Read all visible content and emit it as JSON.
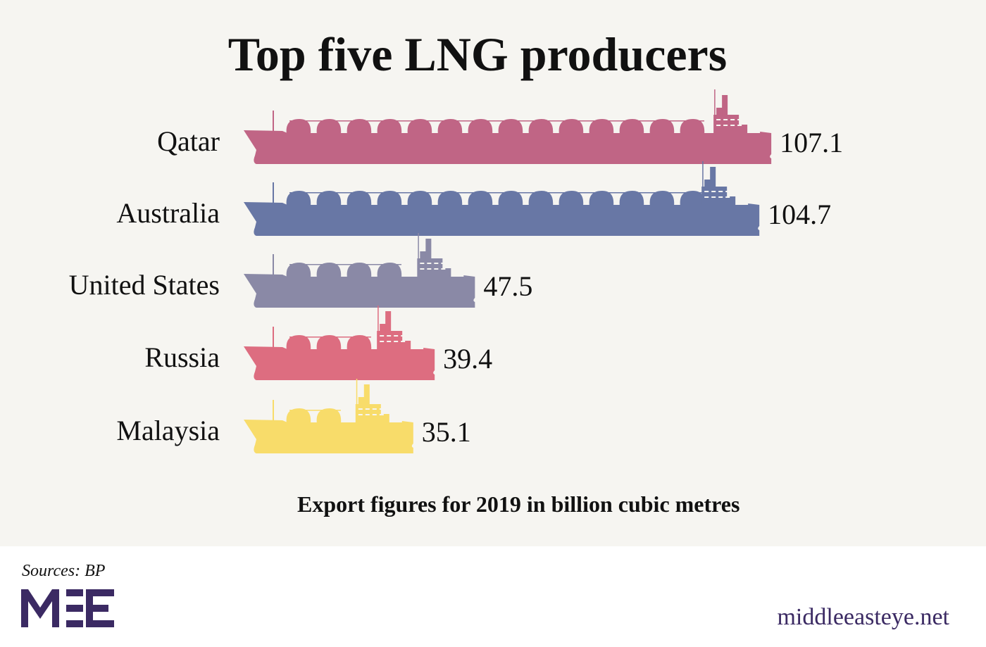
{
  "chart_data": {
    "type": "bar",
    "title": "Top five LNG producers",
    "subtitle": "Export figures for 2019 in billion cubic metres",
    "categories": [
      "Qatar",
      "Australia",
      "United States",
      "Russia",
      "Malaysia"
    ],
    "values": [
      107.1,
      104.7,
      47.5,
      39.4,
      35.1
    ],
    "value_labels": [
      "107.1",
      "104.7",
      "47.5",
      "39.4",
      "35.1"
    ],
    "colors": [
      "#c06585",
      "#6877a5",
      "#8a89a6",
      "#dd6d80",
      "#f8dc6a"
    ],
    "bar_style": "LNG tanker ship silhouettes",
    "grid": false
  },
  "footer": {
    "sources": "Sources: BP",
    "logo": "MEE",
    "website": "middleeasteye.net",
    "brand_color": "#3b2a63"
  }
}
